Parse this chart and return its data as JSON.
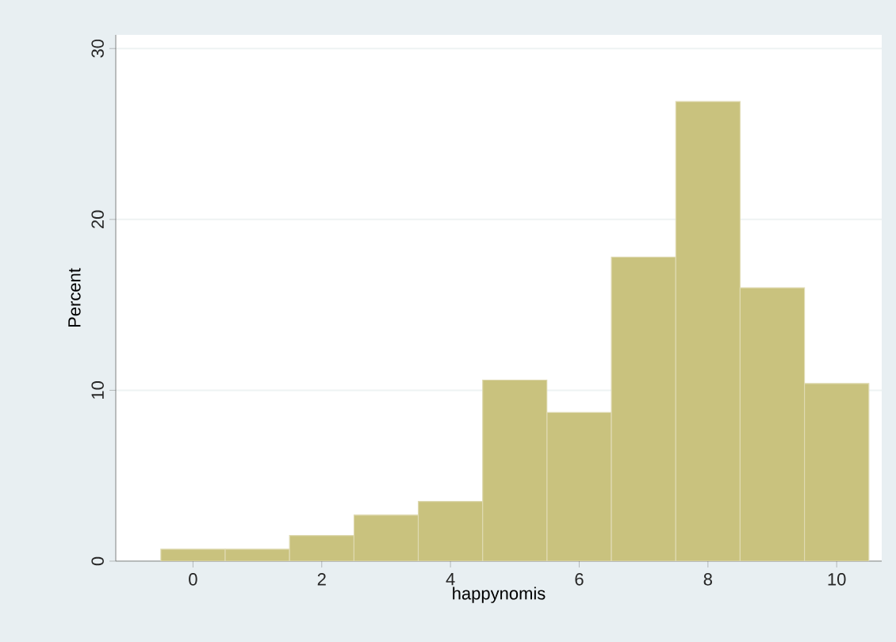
{
  "chart_data": {
    "type": "histogram",
    "xlabel": "happynomis",
    "ylabel": "Percent",
    "bins": [
      -0.5,
      0.5,
      1.5,
      2.5,
      3.5,
      4.5,
      5.5,
      6.5,
      7.5,
      8.5,
      9.5,
      10.5
    ],
    "values": [
      0.7,
      0.7,
      1.5,
      2.7,
      3.5,
      10.6,
      8.7,
      17.8,
      26.9,
      16.0,
      10.4
    ],
    "color": "#c9c27e",
    "xlim": [
      -1.2,
      10.7
    ],
    "ylim": [
      0,
      30.8
    ],
    "xticks": [
      0,
      2,
      4,
      6,
      8,
      10
    ],
    "yticks": [
      0,
      10,
      20,
      30
    ],
    "grid": "y"
  }
}
